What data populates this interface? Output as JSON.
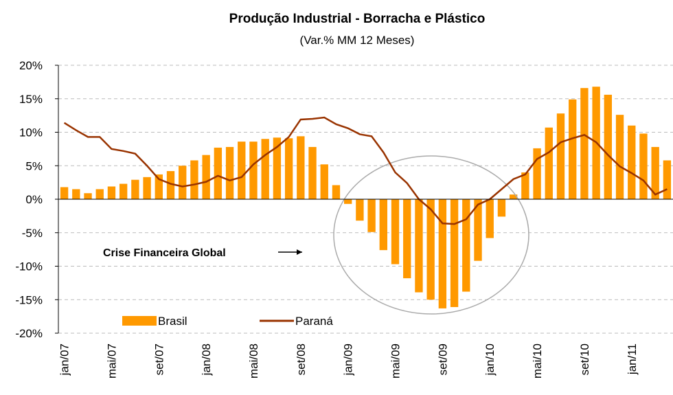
{
  "chart_data": {
    "type": "bar-line",
    "title": "Produção Industrial - Borracha e Plástico",
    "subtitle": "(Var.% MM 12 Meses)",
    "annotation": "Crise Financeira Global",
    "categories": [
      "jan/07",
      null,
      null,
      null,
      "mai/07",
      null,
      null,
      null,
      "set/07",
      null,
      null,
      null,
      "jan/08",
      null,
      null,
      null,
      "mai/08",
      null,
      null,
      null,
      "set/08",
      null,
      null,
      null,
      "jan/09",
      null,
      null,
      null,
      "mai/09",
      null,
      null,
      null,
      "set/09",
      null,
      null,
      null,
      "jan/10",
      null,
      null,
      null,
      "mai/10",
      null,
      null,
      null,
      "set/10",
      null,
      null,
      null,
      "jan/11",
      null,
      null,
      null
    ],
    "series": [
      {
        "name": "Brasil",
        "kind": "bar",
        "color": "#ff9900",
        "values": [
          1.8,
          1.5,
          0.9,
          1.5,
          1.9,
          2.3,
          2.9,
          3.3,
          3.7,
          4.2,
          5.0,
          5.8,
          6.6,
          7.7,
          7.8,
          8.6,
          8.6,
          9.0,
          9.2,
          9.1,
          9.4,
          7.8,
          5.2,
          2.1,
          -0.7,
          -3.2,
          -4.9,
          -7.6,
          -9.7,
          -11.8,
          -13.9,
          -15.0,
          -16.3,
          -16.1,
          -13.8,
          -9.2,
          -5.8,
          -2.6,
          0.7,
          4.0,
          7.6,
          10.7,
          12.8,
          14.9,
          16.6,
          16.8,
          15.6,
          12.6,
          11.0,
          9.8,
          7.8,
          5.8
        ]
      },
      {
        "name": "Paraná",
        "kind": "line",
        "color": "#993300",
        "values": [
          11.4,
          10.3,
          9.3,
          9.3,
          7.5,
          7.2,
          6.8,
          5.0,
          3.0,
          2.3,
          1.9,
          2.2,
          2.6,
          3.5,
          2.8,
          3.3,
          5.2,
          6.6,
          7.8,
          9.3,
          11.9,
          12.0,
          12.2,
          11.2,
          10.6,
          9.7,
          9.4,
          7.0,
          4.0,
          2.4,
          0.0,
          -1.5,
          -3.6,
          -3.7,
          -3.0,
          -0.8,
          0.0,
          1.5,
          3.0,
          3.7,
          6.0,
          7.0,
          8.5,
          9.1,
          9.6,
          8.5,
          6.6,
          4.9,
          3.9,
          2.8,
          0.7,
          1.5
        ]
      }
    ],
    "ylim": [
      -20,
      20
    ],
    "yticks": [
      {
        "value": -20,
        "label": "-20%"
      },
      {
        "value": -15,
        "label": "-15%"
      },
      {
        "value": -10,
        "label": "-10%"
      },
      {
        "value": -5,
        "label": "-5%"
      },
      {
        "value": 0,
        "label": "0%"
      },
      {
        "value": 5,
        "label": "5%"
      },
      {
        "value": 10,
        "label": "10%"
      },
      {
        "value": 15,
        "label": "15%"
      },
      {
        "value": 20,
        "label": "20%"
      }
    ],
    "grid": true,
    "legend": "bottom-left"
  }
}
